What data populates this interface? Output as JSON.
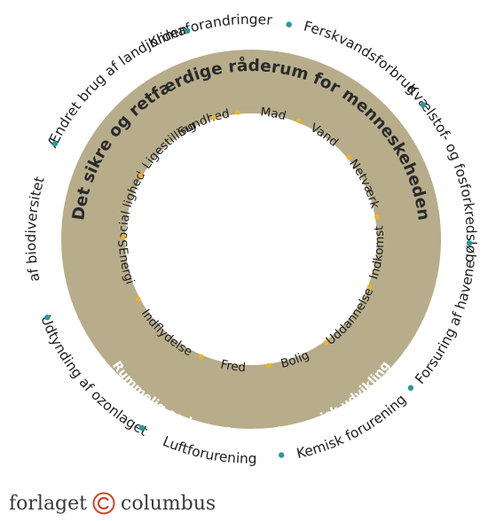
{
  "colors": {
    "ring": "#b7ad8b",
    "outer_dot": "#2a9a97",
    "inner_dot": "#f0b323",
    "text": "#1d1d1d"
  },
  "ring": {
    "title_top": "Det sikre og retfærdige råderum for menneskeheden",
    "title_bottom": "Rummelig og bæredygtig økonomisk udvikling"
  },
  "planetary_boundaries": [
    "Klimaforandringer",
    "Ferskvandsforbrug",
    "Kvælstof- og fosforkredsløb",
    "Forsuring af havene",
    "Kemisk forurening",
    "Luftforurening",
    "Udtynding af ozonlaget",
    "Tab af biodiversitet",
    "Ændret brug af landjorden"
  ],
  "social_foundation": [
    "Sundhed",
    "Mad",
    "Vand",
    "Netværk",
    "Indkomst",
    "Uddannelse",
    "Bolig",
    "Fred",
    "Indflydelse",
    "Energi",
    "Social lighed",
    "Ligestilling"
  ],
  "logo": {
    "left": "forlaget",
    "right": "columbus"
  }
}
